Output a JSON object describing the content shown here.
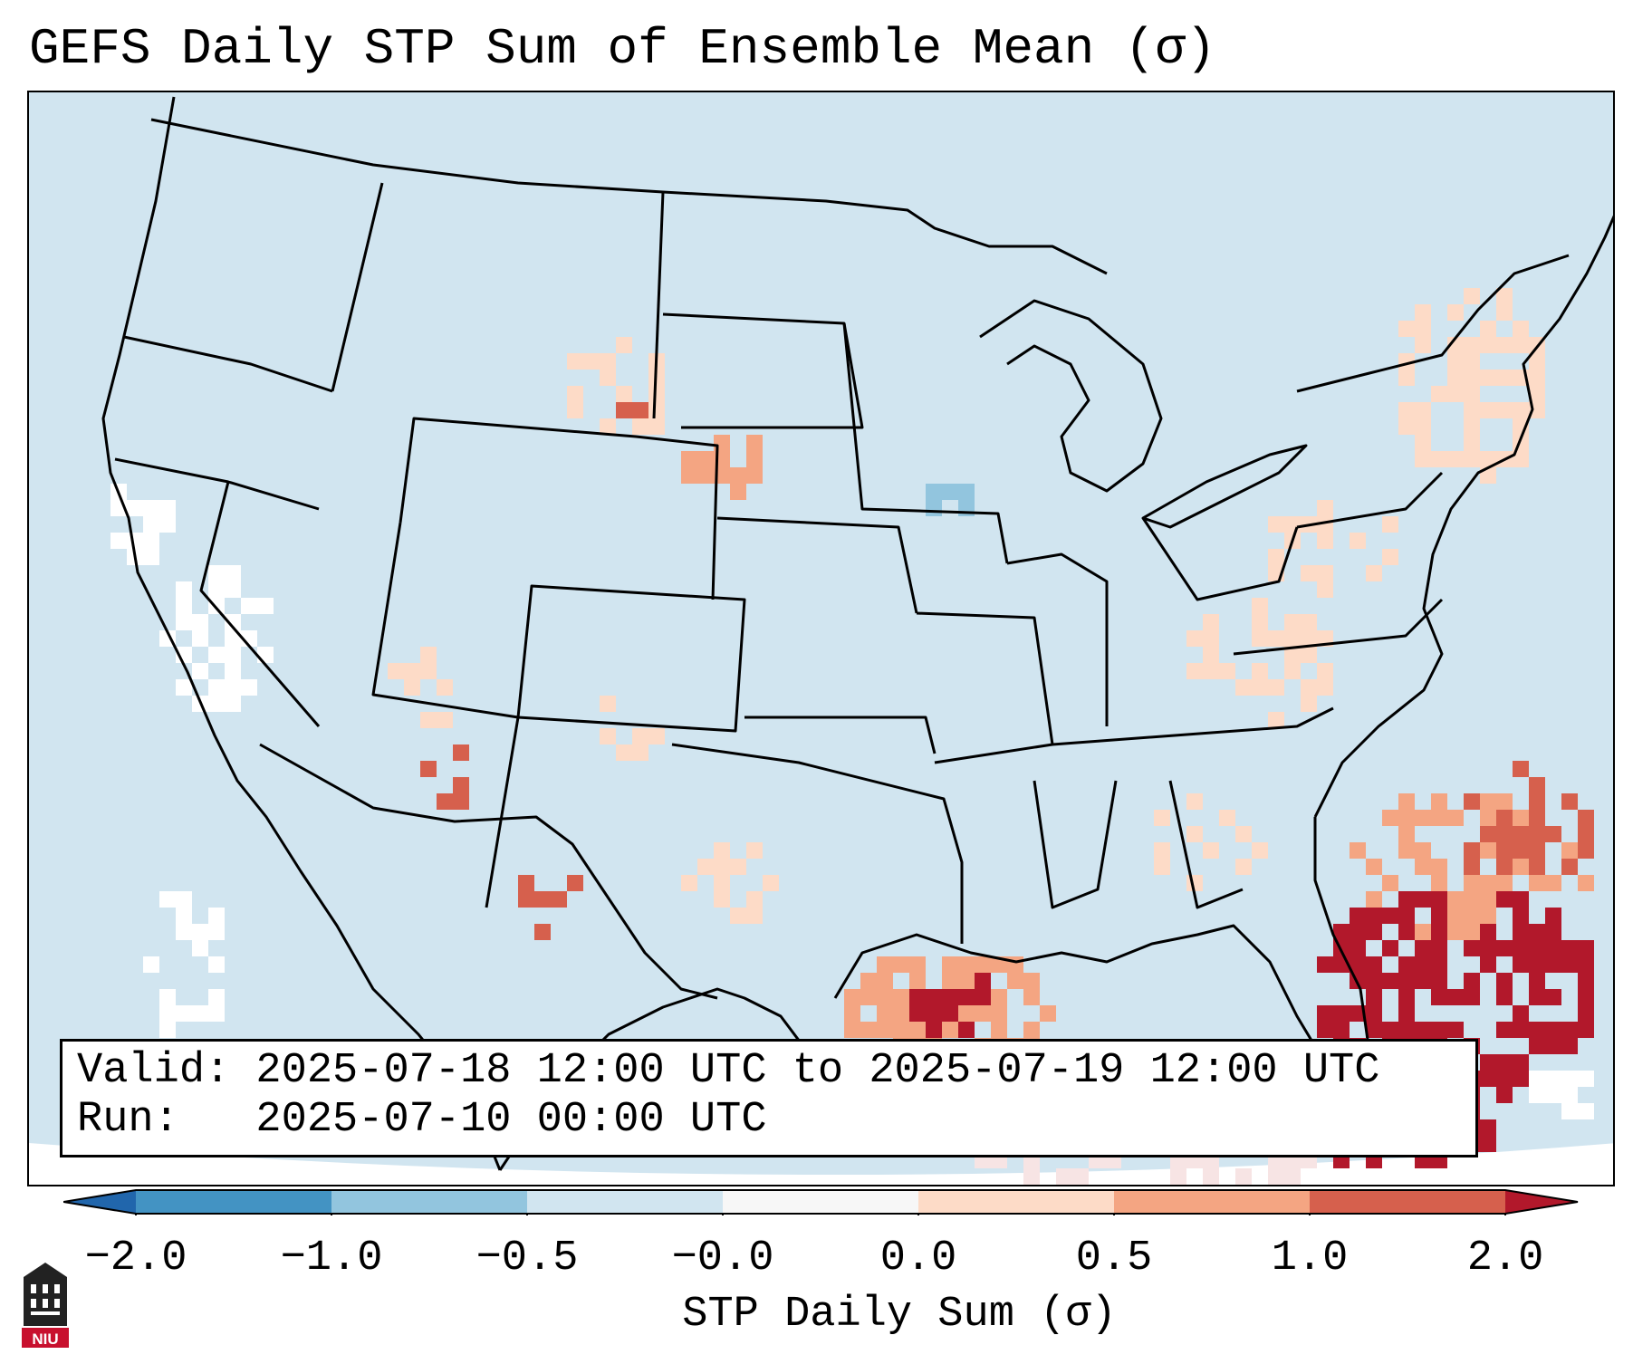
{
  "title": "GEFS Daily STP Sum of Ensemble Mean (σ)",
  "info": {
    "valid_line": "Valid: 2025-07-18 12:00 UTC to 2025-07-19 12:00 UTC",
    "run_line": "Run:   2025-07-10 00:00 UTC"
  },
  "colorbar": {
    "label": "STP Daily Sum (σ)",
    "ticks": [
      "−2.0",
      "−1.0",
      "−0.5",
      "−0.0",
      "0.0",
      "0.5",
      "1.0",
      "2.0"
    ],
    "colors": [
      "#2166ac",
      "#4393c3",
      "#92c5de",
      "#d1e5f0",
      "#f7f7f7",
      "#fddbc7",
      "#f4a582",
      "#d6604d",
      "#b2182b"
    ]
  },
  "map": {
    "background_color": "#d1e5f0",
    "region": "Contiguous United States"
  },
  "logo_text": "NIU"
}
